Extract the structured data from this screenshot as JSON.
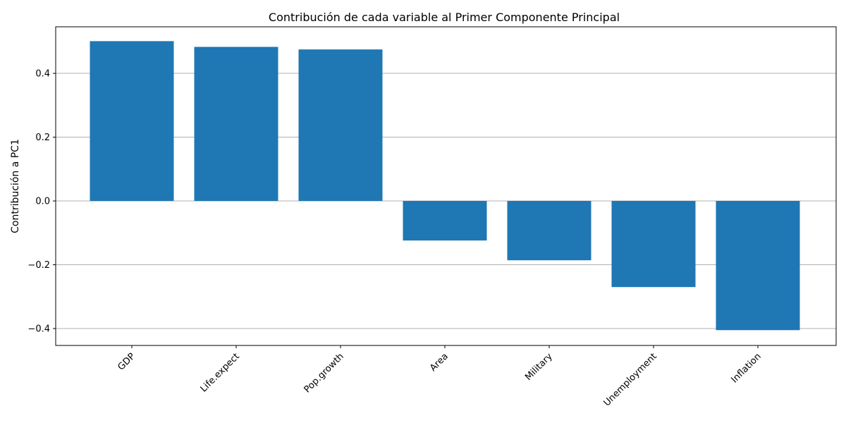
{
  "chart_data": {
    "type": "bar",
    "title": "Contribución de cada variable al Primer Componente Principal",
    "xlabel": "",
    "ylabel": "Contribución a PC1",
    "categories": [
      "GDP",
      "Life.expect",
      "Pop.growth",
      "Area",
      "Military",
      "Unemployment",
      "Inflation"
    ],
    "values": [
      0.501,
      0.483,
      0.475,
      -0.124,
      -0.186,
      -0.27,
      -0.405
    ],
    "ylim": [
      -0.453,
      0.546
    ],
    "yticks": [
      -0.4,
      -0.2,
      0.0,
      0.2,
      0.4
    ],
    "ytick_labels": [
      "−0.4",
      "−0.2",
      "0.0",
      "0.2",
      "0.4"
    ],
    "grid": "y-axis",
    "bar_color": "#1f77b4",
    "tick_label_rotation": 45
  }
}
